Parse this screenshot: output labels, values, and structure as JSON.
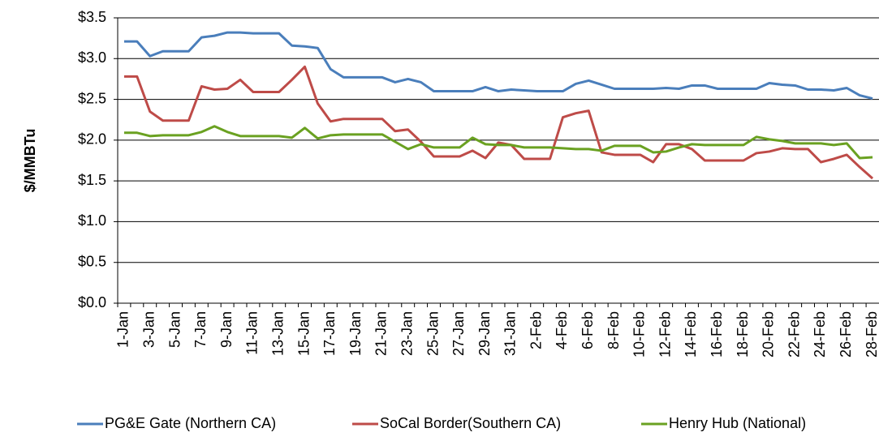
{
  "chart_data": {
    "type": "line",
    "y_label": "$/MMBTu",
    "categories": [
      "1-Jan",
      null,
      "3-Jan",
      null,
      "5-Jan",
      null,
      "7-Jan",
      null,
      "9-Jan",
      null,
      "11-Jan",
      null,
      "13-Jan",
      null,
      "15-Jan",
      null,
      "17-Jan",
      null,
      "19-Jan",
      null,
      "21-Jan",
      null,
      "23-Jan",
      null,
      "25-Jan",
      null,
      "27-Jan",
      null,
      "29-Jan",
      null,
      "31-Jan",
      null,
      "2-Feb",
      null,
      "4-Feb",
      null,
      "6-Feb",
      null,
      "8-Feb",
      null,
      "10-Feb",
      null,
      "12-Feb",
      null,
      "14-Feb",
      null,
      "16-Feb",
      null,
      "18-Feb",
      null,
      "20-Feb",
      null,
      "22-Feb",
      null,
      "24-Feb",
      null,
      "26-Feb",
      null,
      "28-Feb"
    ],
    "series": [
      {
        "name": "PG&E Gate (Northern CA)",
        "color": "#4a7ebb",
        "values": [
          3.21,
          3.21,
          3.03,
          3.09,
          3.09,
          3.09,
          3.26,
          3.28,
          3.32,
          3.32,
          3.31,
          3.31,
          3.31,
          3.16,
          3.15,
          3.13,
          2.87,
          2.77,
          2.77,
          2.77,
          2.77,
          2.71,
          2.75,
          2.71,
          2.6,
          2.6,
          2.6,
          2.6,
          2.65,
          2.6,
          2.62,
          2.61,
          2.6,
          2.6,
          2.6,
          2.69,
          2.73,
          2.68,
          2.63,
          2.63,
          2.63,
          2.63,
          2.64,
          2.63,
          2.67,
          2.67,
          2.63,
          2.63,
          2.63,
          2.63,
          2.7,
          2.68,
          2.67,
          2.62,
          2.62,
          2.61,
          2.64,
          2.55,
          2.51
        ]
      },
      {
        "name": "SoCal Border(Southern CA)",
        "color": "#be4b48",
        "values": [
          2.78,
          2.78,
          2.35,
          2.24,
          2.24,
          2.24,
          2.66,
          2.62,
          2.63,
          2.74,
          2.59,
          2.59,
          2.59,
          2.74,
          2.9,
          2.45,
          2.23,
          2.26,
          2.26,
          2.26,
          2.26,
          2.11,
          2.13,
          1.98,
          1.8,
          1.8,
          1.8,
          1.87,
          1.78,
          1.97,
          1.94,
          1.77,
          1.77,
          1.77,
          2.28,
          2.33,
          2.36,
          1.85,
          1.82,
          1.82,
          1.82,
          1.73,
          1.95,
          1.95,
          1.89,
          1.75,
          1.75,
          1.75,
          1.75,
          1.84,
          1.86,
          1.9,
          1.89,
          1.89,
          1.73,
          1.77,
          1.82,
          1.67,
          1.53
        ]
      },
      {
        "name": "Henry Hub (National)",
        "color": "#6aa121",
        "values": [
          2.09,
          2.09,
          2.05,
          2.06,
          2.06,
          2.06,
          2.1,
          2.17,
          2.1,
          2.05,
          2.05,
          2.05,
          2.05,
          2.03,
          2.15,
          2.02,
          2.06,
          2.07,
          2.07,
          2.07,
          2.07,
          1.98,
          1.89,
          1.95,
          1.91,
          1.91,
          1.91,
          2.03,
          1.95,
          1.94,
          1.94,
          1.91,
          1.91,
          1.91,
          1.9,
          1.89,
          1.89,
          1.87,
          1.93,
          1.93,
          1.93,
          1.85,
          1.86,
          1.91,
          1.95,
          1.94,
          1.94,
          1.94,
          1.94,
          2.04,
          2.01,
          1.99,
          1.96,
          1.96,
          1.96,
          1.94,
          1.96,
          1.78,
          1.79
        ]
      }
    ],
    "ylim": [
      0,
      3.5
    ],
    "yticks": [
      {
        "value": 0,
        "label": "$0.0"
      },
      {
        "value": 0.5,
        "label": "$0.5"
      },
      {
        "value": 1,
        "label": "$1.0"
      },
      {
        "value": 1.5,
        "label": "$1.5"
      },
      {
        "value": 2,
        "label": "$2.0"
      },
      {
        "value": 2.5,
        "label": "$2.5"
      },
      {
        "value": 3,
        "label": "$3.0"
      },
      {
        "value": 3.5,
        "label": "$3.5"
      }
    ],
    "grid": true,
    "legend": "bottom"
  }
}
